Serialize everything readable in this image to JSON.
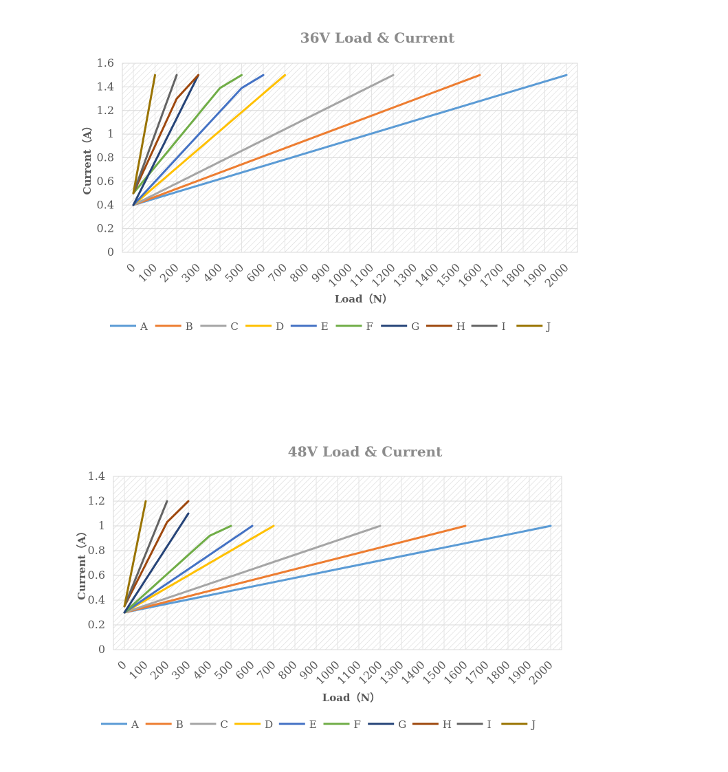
{
  "chart_data": [
    {
      "type": "line",
      "title": "36V Load & Current",
      "xlabel": "Load（N）",
      "ylabel": "Current（A）",
      "categories": [
        "0",
        "100",
        "200",
        "300",
        "400",
        "500",
        "600",
        "700",
        "800",
        "900",
        "1000",
        "1100",
        "1200",
        "1300",
        "1400",
        "1500",
        "1600",
        "1700",
        "1800",
        "1900",
        "2000"
      ],
      "ylim": [
        0,
        1.6
      ],
      "yticks": [
        "0",
        "0.2",
        "0.4",
        "0.6",
        "0.8",
        "1",
        "1.2",
        "1.4",
        "1.6"
      ],
      "grid": true,
      "legend": "bottom",
      "series": [
        {
          "name": "A",
          "color": "#5b9bd5",
          "x": [
            0,
            2000
          ],
          "y": [
            0.4,
            1.5
          ]
        },
        {
          "name": "B",
          "color": "#ed7d31",
          "x": [
            0,
            1600
          ],
          "y": [
            0.4,
            1.5
          ]
        },
        {
          "name": "C",
          "color": "#a5a5a5",
          "x": [
            0,
            1200
          ],
          "y": [
            0.4,
            1.5
          ]
        },
        {
          "name": "D",
          "color": "#ffc000",
          "x": [
            0,
            700
          ],
          "y": [
            0.4,
            1.5
          ]
        },
        {
          "name": "E",
          "color": "#4472c4",
          "x": [
            0,
            500,
            600
          ],
          "y": [
            0.4,
            1.39,
            1.5
          ]
        },
        {
          "name": "F",
          "color": "#70ad47",
          "x": [
            0,
            400,
            500
          ],
          "y": [
            0.5,
            1.39,
            1.5
          ]
        },
        {
          "name": "G",
          "color": "#264478",
          "x": [
            0,
            300
          ],
          "y": [
            0.4,
            1.5
          ]
        },
        {
          "name": "H",
          "color": "#9e480e",
          "x": [
            0,
            200,
            300
          ],
          "y": [
            0.5,
            1.3,
            1.5
          ]
        },
        {
          "name": "I",
          "color": "#636363",
          "x": [
            0,
            200
          ],
          "y": [
            0.5,
            1.5
          ]
        },
        {
          "name": "J",
          "color": "#997300",
          "x": [
            0,
            100
          ],
          "y": [
            0.5,
            1.5
          ]
        }
      ]
    },
    {
      "type": "line",
      "title": "48V Load & Current",
      "xlabel": "Load（N）",
      "ylabel": "Current（A）",
      "categories": [
        "0",
        "100",
        "200",
        "300",
        "400",
        "500",
        "600",
        "700",
        "800",
        "900",
        "1000",
        "1100",
        "1200",
        "1300",
        "1400",
        "1500",
        "1600",
        "1700",
        "1800",
        "1900",
        "2000"
      ],
      "ylim": [
        0,
        1.4
      ],
      "yticks": [
        "0",
        "0.2",
        "0.4",
        "0.6",
        "0.8",
        "1",
        "1.2",
        "1.4"
      ],
      "grid": true,
      "legend": "bottom",
      "series": [
        {
          "name": "A",
          "color": "#5b9bd5",
          "x": [
            0,
            2000
          ],
          "y": [
            0.3,
            1.0
          ]
        },
        {
          "name": "B",
          "color": "#ed7d31",
          "x": [
            0,
            1600
          ],
          "y": [
            0.3,
            1.0
          ]
        },
        {
          "name": "C",
          "color": "#a5a5a5",
          "x": [
            0,
            1200
          ],
          "y": [
            0.3,
            1.0
          ]
        },
        {
          "name": "D",
          "color": "#ffc000",
          "x": [
            0,
            700
          ],
          "y": [
            0.3,
            1.0
          ]
        },
        {
          "name": "E",
          "color": "#4472c4",
          "x": [
            0,
            600
          ],
          "y": [
            0.3,
            1.0
          ]
        },
        {
          "name": "F",
          "color": "#70ad47",
          "x": [
            0,
            400,
            500
          ],
          "y": [
            0.3,
            0.92,
            1.0
          ]
        },
        {
          "name": "G",
          "color": "#264478",
          "x": [
            0,
            300
          ],
          "y": [
            0.3,
            1.1
          ]
        },
        {
          "name": "H",
          "color": "#9e480e",
          "x": [
            0,
            200,
            300
          ],
          "y": [
            0.35,
            1.03,
            1.2
          ]
        },
        {
          "name": "I",
          "color": "#636363",
          "x": [
            0,
            200
          ],
          "y": [
            0.35,
            1.2
          ]
        },
        {
          "name": "J",
          "color": "#997300",
          "x": [
            0,
            100
          ],
          "y": [
            0.35,
            1.2
          ]
        }
      ]
    }
  ]
}
